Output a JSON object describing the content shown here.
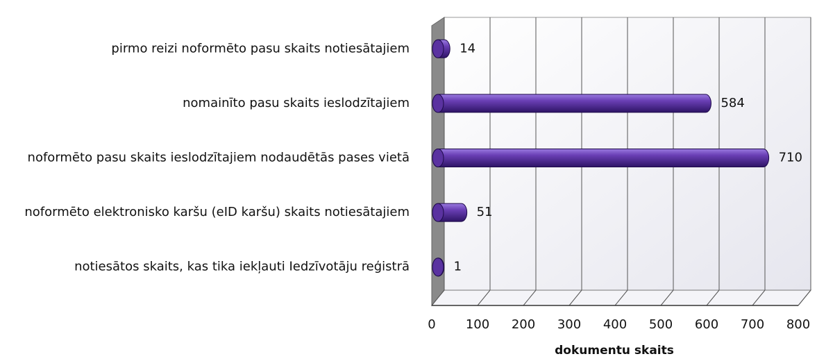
{
  "chart_data": {
    "type": "bar",
    "orientation": "horizontal",
    "categories": [
      "pirmo reizi noformēto pasu skaits notiesātajiem",
      "nomainīto pasu skaits ieslodzītajiem",
      "noformēto pasu skaits ieslodzītajiem nodaudētās pases vietā",
      "noformēto elektronisko karšu (eID karšu) skaits notiesātajiem",
      "notiesātos skaits, kas tika iekļauti  Iedzīvotāju reģistrā"
    ],
    "values": [
      14,
      584,
      710,
      51,
      1
    ],
    "color": "#6a3fb5",
    "xlabel": "dokumentu skaits",
    "xlim": [
      0,
      800
    ],
    "xticks": [
      0,
      100,
      200,
      300,
      400,
      500,
      600,
      700,
      800
    ],
    "grid": true
  }
}
